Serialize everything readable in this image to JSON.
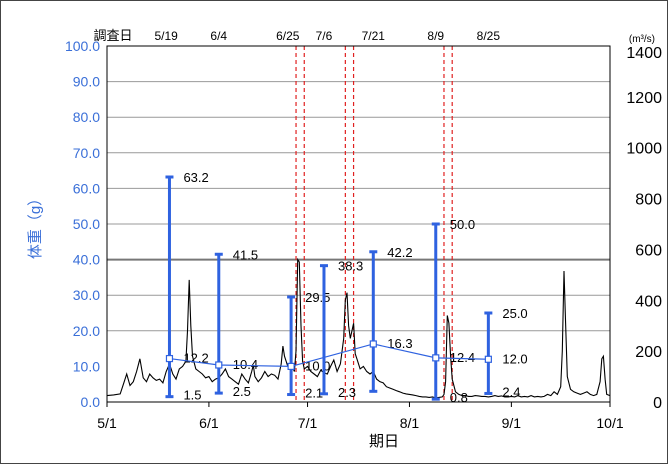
{
  "chart_data": {
    "type": "line",
    "xlabel": "期日",
    "ylabel_left": "体重（g）",
    "ylabel_right": "(m³/s)",
    "ylim_left": [
      0,
      100
    ],
    "ylim_right": [
      0,
      1400
    ],
    "yticks_left": [
      "0.0",
      "10.0",
      "20.0",
      "30.0",
      "40.0",
      "50.0",
      "60.0",
      "70.0",
      "80.0",
      "90.0",
      "100.0"
    ],
    "yticks_right": [
      "0",
      "200",
      "400",
      "600",
      "800",
      "1000",
      "1200",
      "1400"
    ],
    "x_range": [
      "5/1",
      "10/1"
    ],
    "x_ticks": [
      {
        "label": "5/1",
        "day": 0
      },
      {
        "label": "6/1",
        "day": 31
      },
      {
        "label": "7/1",
        "day": 61
      },
      {
        "label": "8/1",
        "day": 92
      },
      {
        "label": "9/1",
        "day": 123
      },
      {
        "label": "10/1",
        "day": 153
      }
    ],
    "survey_label": "調査日",
    "survey_dates": [
      {
        "label": "5/19",
        "day": 18
      },
      {
        "label": "6/4",
        "day": 34
      },
      {
        "label": "6/25",
        "day": 55
      },
      {
        "label": "7/6",
        "day": 66
      },
      {
        "label": "7/21",
        "day": 81
      },
      {
        "label": "8/9",
        "day": 100
      },
      {
        "label": "8/25",
        "day": 116
      }
    ],
    "flood_lines_days": [
      57.5,
      60,
      72.5,
      75,
      102.5,
      105
    ],
    "gridlines_left": [
      20,
      30,
      40,
      50,
      60,
      70,
      80,
      90,
      100
    ],
    "heavy_gridline": 40,
    "weight_ranges": [
      {
        "day": 19,
        "max": 63.2,
        "min": 1.5,
        "mean": 12.2,
        "max_label": "63.2",
        "min_label": "1.5",
        "mean_label": "12.2"
      },
      {
        "day": 34,
        "max": 41.5,
        "min": 2.5,
        "mean": 10.4,
        "max_label": "41.5",
        "min_label": "2.5",
        "mean_label": "10.4"
      },
      {
        "day": 56,
        "max": 29.5,
        "min": 2.1,
        "mean": 10.0,
        "max_label": "29.5",
        "min_label": "2.1",
        "mean_label": "10.0"
      },
      {
        "day": 66,
        "max": 38.3,
        "min": 2.3,
        "mean": null,
        "max_label": "38.3",
        "min_label": "2.3",
        "mean_label": ""
      },
      {
        "day": 81,
        "max": 42.2,
        "min": 3.0,
        "mean": 16.3,
        "max_label": "42.2",
        "min_label": "",
        "mean_label": "16.3"
      },
      {
        "day": 100,
        "max": 50.0,
        "min": 0.8,
        "mean": 12.4,
        "max_label": "50.0",
        "min_label": "0.8",
        "mean_label": "12.4"
      },
      {
        "day": 116,
        "max": 25.0,
        "min": 2.4,
        "mean": 12.0,
        "max_label": "25.0",
        "min_label": "2.4",
        "mean_label": "12.0"
      }
    ],
    "discharge_series": {
      "name": "",
      "unit": "m³/s",
      "points": [
        [
          0,
          25
        ],
        [
          2,
          28
        ],
        [
          4,
          32
        ],
        [
          5,
          70
        ],
        [
          6,
          110
        ],
        [
          7,
          65
        ],
        [
          8,
          80
        ],
        [
          9,
          120
        ],
        [
          10,
          170
        ],
        [
          11,
          95
        ],
        [
          12,
          80
        ],
        [
          13,
          110
        ],
        [
          14,
          95
        ],
        [
          15,
          85
        ],
        [
          16,
          90
        ],
        [
          17,
          75
        ],
        [
          18,
          120
        ],
        [
          19,
          150
        ],
        [
          20,
          110
        ],
        [
          21,
          90
        ],
        [
          22,
          130
        ],
        [
          23,
          140
        ],
        [
          24,
          160
        ],
        [
          24.5,
          280
        ],
        [
          25,
          480
        ],
        [
          25.5,
          300
        ],
        [
          26,
          180
        ],
        [
          27,
          130
        ],
        [
          28,
          120
        ],
        [
          29,
          110
        ],
        [
          30,
          95
        ],
        [
          31,
          100
        ],
        [
          32,
          80
        ],
        [
          33,
          90
        ],
        [
          34,
          95
        ],
        [
          35,
          110
        ],
        [
          36,
          130
        ],
        [
          37,
          100
        ],
        [
          38,
          90
        ],
        [
          39,
          80
        ],
        [
          40,
          70
        ],
        [
          41,
          110
        ],
        [
          42,
          90
        ],
        [
          43,
          75
        ],
        [
          44,
          120
        ],
        [
          44.5,
          145
        ],
        [
          45,
          100
        ],
        [
          46,
          80
        ],
        [
          47,
          95
        ],
        [
          48,
          120
        ],
        [
          49,
          100
        ],
        [
          50,
          110
        ],
        [
          51,
          105
        ],
        [
          52,
          90
        ],
        [
          53,
          150
        ],
        [
          53.5,
          220
        ],
        [
          54,
          180
        ],
        [
          55,
          140
        ],
        [
          56,
          150
        ],
        [
          57,
          120
        ],
        [
          57.5,
          200
        ],
        [
          58,
          560
        ],
        [
          58.5,
          550
        ],
        [
          59,
          300
        ],
        [
          59.5,
          160
        ],
        [
          60,
          130
        ],
        [
          61,
          140
        ],
        [
          62,
          120
        ],
        [
          63,
          110
        ],
        [
          64,
          100
        ],
        [
          65,
          125
        ],
        [
          66,
          115
        ],
        [
          67,
          110
        ],
        [
          68,
          140
        ],
        [
          69,
          165
        ],
        [
          70,
          120
        ],
        [
          71,
          150
        ],
        [
          72,
          250
        ],
        [
          72.5,
          400
        ],
        [
          73,
          430
        ],
        [
          73.5,
          300
        ],
        [
          74,
          250
        ],
        [
          75,
          310
        ],
        [
          75.5,
          190
        ],
        [
          76,
          170
        ],
        [
          77,
          130
        ],
        [
          78,
          140
        ],
        [
          79,
          120
        ],
        [
          80,
          110
        ],
        [
          81,
          120
        ],
        [
          82,
          90
        ],
        [
          83,
          80
        ],
        [
          84,
          75
        ],
        [
          85,
          60
        ],
        [
          86,
          55
        ],
        [
          87,
          50
        ],
        [
          88,
          45
        ],
        [
          89,
          40
        ],
        [
          90,
          35
        ],
        [
          91,
          32
        ],
        [
          92,
          30
        ],
        [
          93,
          28
        ],
        [
          94,
          25
        ],
        [
          95,
          22
        ],
        [
          96,
          20
        ],
        [
          97,
          20
        ],
        [
          98,
          18
        ],
        [
          99,
          20
        ],
        [
          100,
          16
        ],
        [
          101,
          18
        ],
        [
          102,
          20
        ],
        [
          102.5,
          30
        ],
        [
          103,
          80
        ],
        [
          103.5,
          340
        ],
        [
          104,
          310
        ],
        [
          104.5,
          180
        ],
        [
          105,
          90
        ],
        [
          106,
          40
        ],
        [
          107,
          30
        ],
        [
          108,
          25
        ],
        [
          109,
          25
        ],
        [
          110,
          22
        ],
        [
          111,
          22
        ],
        [
          112,
          25
        ],
        [
          113,
          24
        ],
        [
          114,
          22
        ],
        [
          115,
          22
        ],
        [
          116,
          20
        ],
        [
          117,
          22
        ],
        [
          118,
          25
        ],
        [
          119,
          22
        ],
        [
          120,
          24
        ],
        [
          121,
          20
        ],
        [
          122,
          20
        ],
        [
          123,
          22
        ],
        [
          124,
          20
        ],
        [
          125,
          25
        ],
        [
          126,
          20
        ],
        [
          127,
          22
        ],
        [
          128,
          20
        ],
        [
          129,
          25
        ],
        [
          130,
          20
        ],
        [
          131,
          22
        ],
        [
          132,
          20
        ],
        [
          133,
          22
        ],
        [
          134,
          30
        ],
        [
          135,
          25
        ],
        [
          136,
          40
        ],
        [
          137,
          30
        ],
        [
          138,
          60
        ],
        [
          138.5,
          200
        ],
        [
          139,
          515
        ],
        [
          139.5,
          310
        ],
        [
          140,
          100
        ],
        [
          141,
          50
        ],
        [
          142,
          40
        ],
        [
          143,
          35
        ],
        [
          144,
          30
        ],
        [
          145,
          35
        ],
        [
          146,
          40
        ],
        [
          147,
          30
        ],
        [
          148,
          25
        ],
        [
          149,
          30
        ],
        [
          150,
          80
        ],
        [
          150.5,
          170
        ],
        [
          151,
          180
        ],
        [
          151.5,
          90
        ],
        [
          152,
          30
        ],
        [
          153,
          25
        ]
      ]
    }
  }
}
